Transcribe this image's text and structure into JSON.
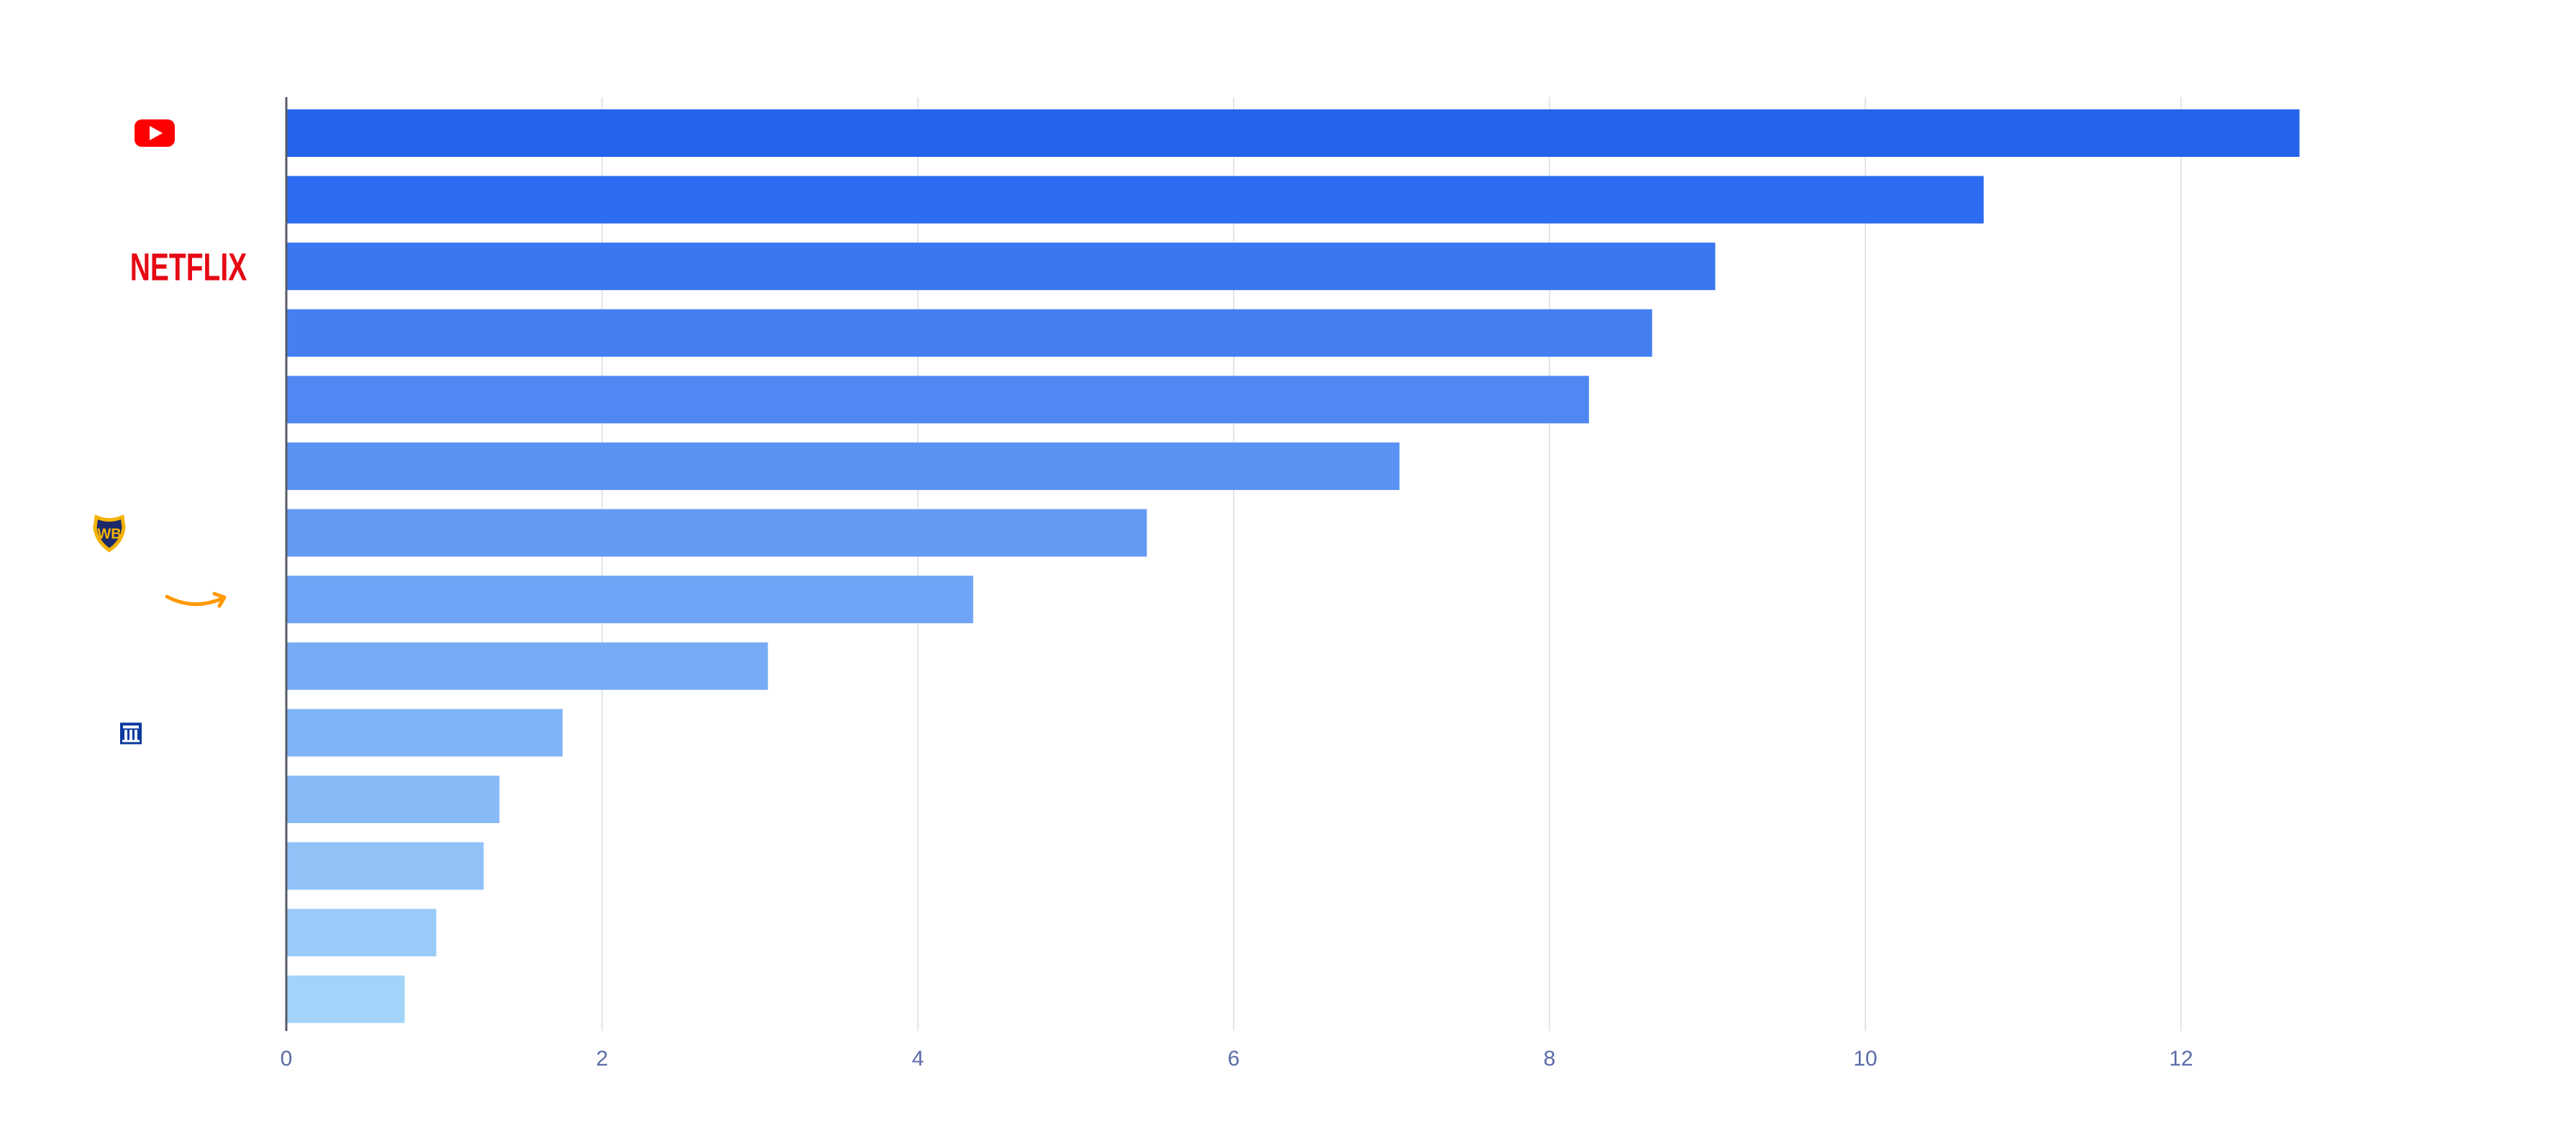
{
  "chart_data": {
    "type": "bar",
    "orientation": "horizontal",
    "title": "",
    "xlabel": "",
    "ylabel": "",
    "xlim": [
      0,
      14
    ],
    "x_ticks": [
      "0",
      "2",
      "4",
      "6",
      "8",
      "10",
      "12"
    ],
    "grid": true,
    "categories": [
      {
        "logo": "youtube-logo"
      },
      {
        "logo": ""
      },
      {
        "logo": "netflix-logo",
        "logo_text": "NETFLIX"
      },
      {
        "logo": ""
      },
      {
        "logo": ""
      },
      {
        "logo": ""
      },
      {
        "logo": "warner-bros-logo",
        "logo_text": "WB"
      },
      {
        "logo": "amazon-logo"
      },
      {
        "logo": ""
      },
      {
        "logo": "building-logo"
      },
      {
        "logo": ""
      },
      {
        "logo": ""
      },
      {
        "logo": ""
      },
      {
        "logo": ""
      }
    ],
    "values": [
      12.75,
      10.75,
      9.05,
      8.65,
      8.25,
      7.05,
      5.45,
      4.35,
      3.05,
      1.75,
      1.35,
      1.25,
      0.95,
      0.75
    ],
    "colors": [
      "#2563eb",
      "#2d6cf0",
      "#3a77f0",
      "#4580f1",
      "#4f88f2",
      "#5a92f3",
      "#649af4",
      "#6ea3f5",
      "#77abf5",
      "#81b4f6",
      "#88baf7",
      "#92c1f8",
      "#9acbf8",
      "#a3d3f8"
    ],
    "axis_color": "#5b6ba8"
  }
}
